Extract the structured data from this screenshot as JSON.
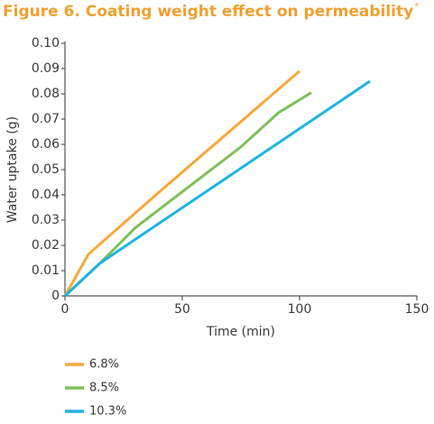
{
  "chart_data": {
    "type": "line",
    "title": "Figure 6. Coating weight effect on permeability",
    "title_mark": "*",
    "x_label": "Time (min)",
    "y_label": "Water uptake (g)",
    "xlim": [
      0,
      150
    ],
    "xticks": [
      0,
      50,
      100,
      150
    ],
    "ylim": [
      0,
      0.1
    ],
    "yticks": [
      0,
      0.01,
      0.02,
      0.03,
      0.04,
      0.05,
      0.06,
      0.07,
      0.08,
      0.09,
      {
        "value": 0.1,
        "label": "0.10"
      }
    ],
    "series": [
      {
        "name": "6.8%",
        "color": "#f5a83a",
        "x": [
          0,
          10,
          40,
          85,
          100
        ],
        "values": [
          0,
          0.0165,
          0.041,
          0.077,
          0.089
        ]
      },
      {
        "name": "8.5%",
        "color": "#7dc05a",
        "x": [
          0,
          15,
          30,
          75,
          91,
          105
        ],
        "values": [
          0,
          0.013,
          0.027,
          0.059,
          0.0725,
          0.0805
        ]
      },
      {
        "name": "10.3%",
        "color": "#1eb4e0",
        "x": [
          0,
          15,
          130
        ],
        "values": [
          0,
          0.013,
          0.085
        ]
      }
    ]
  }
}
